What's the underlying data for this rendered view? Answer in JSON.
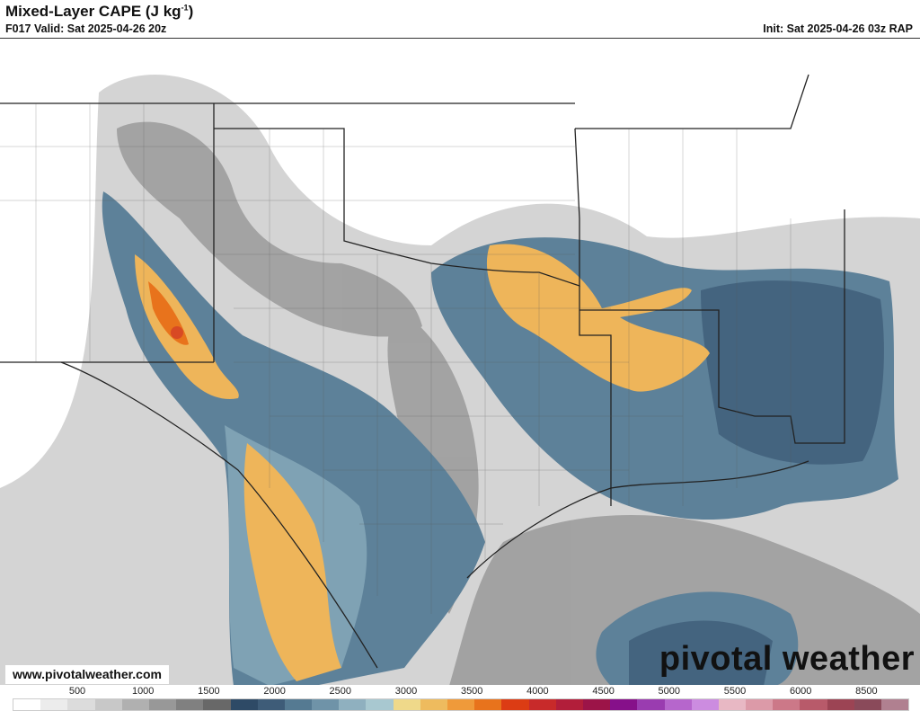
{
  "header": {
    "title": "Mixed-Layer CAPE (J kg",
    "title_sup": "-1",
    "title_end": ")",
    "valid": "F017 Valid: Sat 2025-04-26 20z",
    "init": "Init: Sat 2025-04-26 03z RAP"
  },
  "footer": {
    "url": "www.pivotalweather.com",
    "logo": "pivotal weather"
  },
  "colorbar": {
    "ticks": [
      "500",
      "1000",
      "1500",
      "2000",
      "2500",
      "3000",
      "3500",
      "4000",
      "4500",
      "5000",
      "5500",
      "6000",
      "8500"
    ],
    "colors": [
      "#ffffff",
      "#ececec",
      "#dcdcdc",
      "#c8c8c8",
      "#b0b0b0",
      "#989898",
      "#808080",
      "#686868",
      "#2e4a66",
      "#3e5c78",
      "#557a92",
      "#6f93a8",
      "#8fb0bf",
      "#a8c8d0",
      "#efd98a",
      "#eebb5e",
      "#ef9a3a",
      "#e8731c",
      "#dc3c14",
      "#c82a2a",
      "#b21e3a",
      "#9c1448",
      "#86108a",
      "#9a3cb0",
      "#b666cc",
      "#cc8ce0",
      "#e8b8c4",
      "#dc9aa8",
      "#cc7888",
      "#b85a6a",
      "#9c4454",
      "#8a4a5a",
      "#b08090"
    ]
  },
  "map": {
    "colors": {
      "gray_light": "#d8d8d8",
      "gray_mid": "#a8a8a8",
      "gray_dark": "#7a7a7a",
      "blue_dark": "#3e5c78",
      "blue_mid": "#5d8199",
      "blue_light": "#8fb0bf",
      "yellow": "#efd98a",
      "orange": "#eeb55a",
      "dark_orange": "#e8731c",
      "red": "#d84a24"
    }
  }
}
